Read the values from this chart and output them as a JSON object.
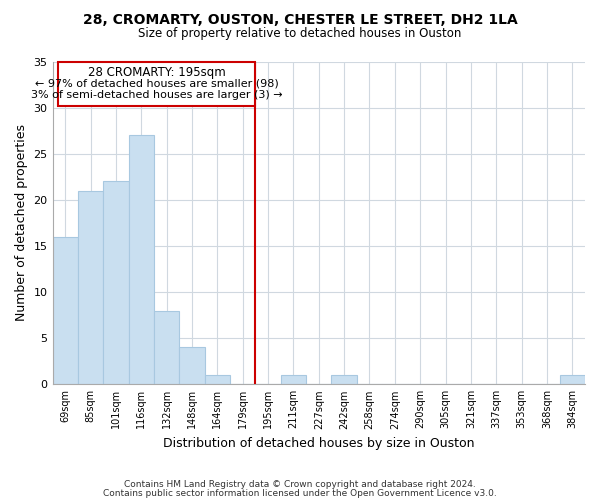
{
  "title1": "28, CROMARTY, OUSTON, CHESTER LE STREET, DH2 1LA",
  "title2": "Size of property relative to detached houses in Ouston",
  "xlabel": "Distribution of detached houses by size in Ouston",
  "ylabel": "Number of detached properties",
  "categories": [
    "69sqm",
    "85sqm",
    "101sqm",
    "116sqm",
    "132sqm",
    "148sqm",
    "164sqm",
    "179sqm",
    "195sqm",
    "211sqm",
    "227sqm",
    "242sqm",
    "258sqm",
    "274sqm",
    "290sqm",
    "305sqm",
    "321sqm",
    "337sqm",
    "353sqm",
    "368sqm",
    "384sqm"
  ],
  "values": [
    16,
    21,
    22,
    27,
    8,
    4,
    1,
    0,
    0,
    1,
    0,
    1,
    0,
    0,
    0,
    0,
    0,
    0,
    0,
    0,
    1
  ],
  "bar_color": "#c9dff0",
  "bar_edgecolor": "#a8c8e0",
  "reference_line_color": "#cc0000",
  "box_title": "28 CROMARTY: 195sqm",
  "box_line1": "← 97% of detached houses are smaller (98)",
  "box_line2": "3% of semi-detached houses are larger (3) →",
  "box_color": "#ffffff",
  "box_edgecolor": "#cc0000",
  "ylim": [
    0,
    35
  ],
  "yticks": [
    0,
    5,
    10,
    15,
    20,
    25,
    30,
    35
  ],
  "footer1": "Contains HM Land Registry data © Crown copyright and database right 2024.",
  "footer2": "Contains public sector information licensed under the Open Government Licence v3.0.",
  "background_color": "#ffffff",
  "grid_color": "#d0d8e0"
}
